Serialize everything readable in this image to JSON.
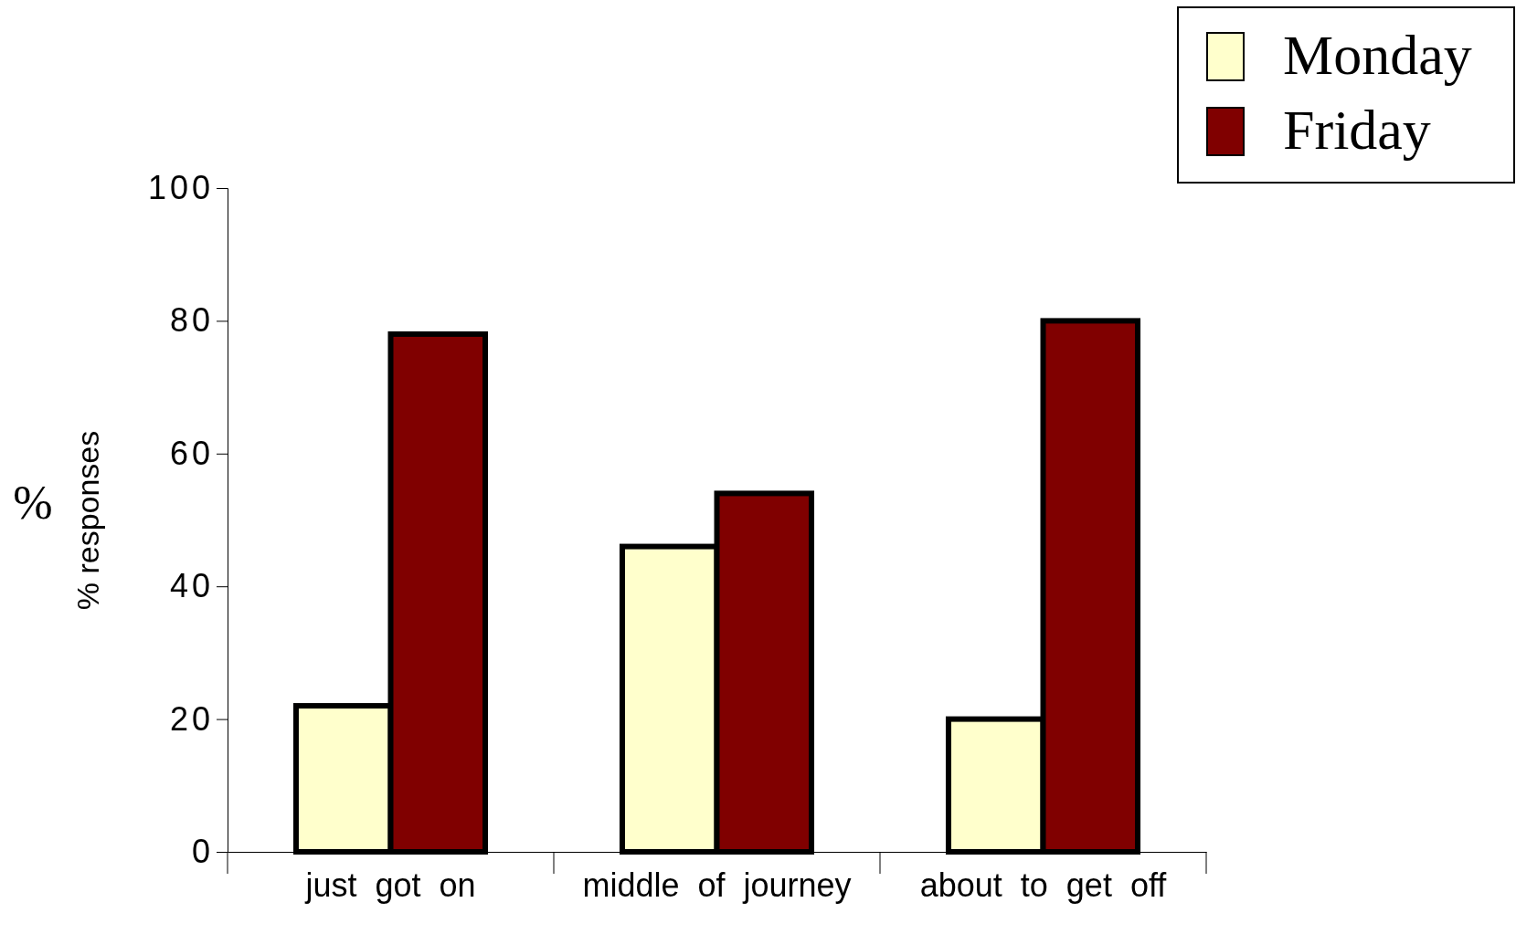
{
  "chart_data": {
    "type": "bar",
    "ylabel": "% responses",
    "annotations": [
      "%"
    ],
    "categories": [
      "just got on",
      "middle of journey",
      "about to get off"
    ],
    "series": [
      {
        "name": "Monday",
        "color": "#ffffcc",
        "values": [
          22,
          46,
          20
        ]
      },
      {
        "name": "Friday",
        "color": "#800000",
        "values": [
          78,
          54,
          80
        ]
      }
    ],
    "ylim": [
      0,
      100
    ],
    "yticks": [
      0,
      20,
      40,
      60,
      80,
      100
    ],
    "grid": false,
    "legend": "top right"
  }
}
